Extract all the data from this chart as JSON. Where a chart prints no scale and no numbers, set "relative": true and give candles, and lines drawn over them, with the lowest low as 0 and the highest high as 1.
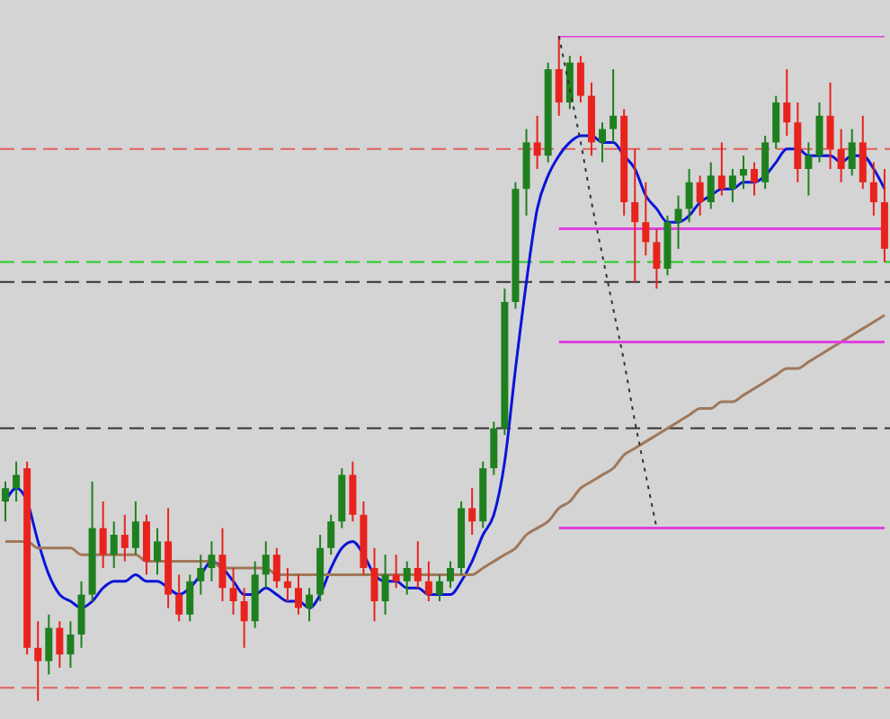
{
  "chart_data": {
    "type": "candlestick",
    "relative": true,
    "grid": false,
    "tick_labels": false,
    "marker": "none",
    "categories": [
      null,
      null,
      null,
      null,
      null,
      null,
      null,
      null,
      null,
      null,
      null,
      null,
      null,
      null,
      null,
      null,
      null,
      null,
      null,
      null,
      null,
      null,
      null,
      null,
      null,
      null,
      null,
      null,
      null,
      null,
      null,
      null,
      null,
      null,
      null,
      null,
      null,
      null,
      null,
      null,
      null,
      null,
      null,
      null,
      null,
      null,
      null,
      null,
      null,
      null,
      null,
      null,
      null,
      null,
      null,
      null,
      null,
      null,
      null,
      null,
      null,
      null,
      null,
      null,
      null,
      null,
      null,
      null,
      null,
      null,
      null,
      null,
      null,
      null,
      null,
      null,
      null,
      null,
      null,
      null,
      null,
      null
    ],
    "colors": [
      "#1f801f",
      "#1f801f",
      "#e8231d",
      "#e8231d",
      "#1f801f",
      "#e8231d",
      "#1f801f",
      "#1f801f",
      "#1f801f",
      "#e8231d",
      "#1f801f",
      "#e8231d",
      "#1f801f",
      "#e8231d",
      "#1f801f",
      "#e8231d",
      "#e8231d",
      "#1f801f",
      "#1f801f",
      "#1f801f",
      "#e8231d",
      "#e8231d",
      "#e8231d",
      "#1f801f",
      "#1f801f",
      "#e8231d",
      "#e8231d",
      "#e8231d",
      "#1f801f",
      "#1f801f",
      "#1f801f",
      "#1f801f",
      "#e8231d",
      "#e8231d",
      "#e8231d",
      "#1f801f",
      "#e8231d",
      "#1f801f",
      "#e8231d",
      "#e8231d",
      "#1f801f",
      "#1f801f",
      "#1f801f",
      "#e8231d",
      "#1f801f",
      "#1f801f",
      "#1f801f",
      "#1f801f",
      "#1f801f",
      "#e8231d",
      "#1f801f",
      "#e8231d",
      "#1f801f",
      "#e8231d",
      "#e8231d",
      "#1f801f",
      "#1f801f",
      "#e8231d",
      "#e8231d",
      "#e8231d",
      "#e8231d",
      "#1f801f",
      "#1f801f",
      "#1f801f",
      "#e8231d",
      "#1f801f",
      "#e8231d",
      "#1f801f",
      "#1f801f",
      "#e8231d",
      "#1f801f",
      "#1f801f",
      "#e8231d",
      "#e8231d",
      "#1f801f",
      "#1f801f",
      "#e8231d",
      "#e8231d",
      "#1f801f",
      "#e8231d",
      "#e8231d",
      "#e8231d"
    ],
    "ohlc": [
      [
        0.3,
        0.33,
        0.27,
        0.32
      ],
      [
        0.32,
        0.36,
        0.3,
        0.34
      ],
      [
        0.35,
        0.36,
        0.07,
        0.08
      ],
      [
        0.08,
        0.12,
        0.0,
        0.06
      ],
      [
        0.06,
        0.13,
        0.04,
        0.11
      ],
      [
        0.11,
        0.12,
        0.05,
        0.07
      ],
      [
        0.07,
        0.12,
        0.05,
        0.1
      ],
      [
        0.1,
        0.18,
        0.08,
        0.16
      ],
      [
        0.16,
        0.33,
        0.15,
        0.26
      ],
      [
        0.26,
        0.3,
        0.2,
        0.22
      ],
      [
        0.22,
        0.27,
        0.2,
        0.25
      ],
      [
        0.25,
        0.28,
        0.21,
        0.23
      ],
      [
        0.23,
        0.3,
        0.22,
        0.27
      ],
      [
        0.27,
        0.28,
        0.19,
        0.21
      ],
      [
        0.21,
        0.26,
        0.19,
        0.24
      ],
      [
        0.24,
        0.29,
        0.14,
        0.16
      ],
      [
        0.16,
        0.19,
        0.12,
        0.13
      ],
      [
        0.13,
        0.19,
        0.12,
        0.18
      ],
      [
        0.18,
        0.22,
        0.16,
        0.2
      ],
      [
        0.2,
        0.24,
        0.18,
        0.22
      ],
      [
        0.22,
        0.26,
        0.15,
        0.17
      ],
      [
        0.17,
        0.2,
        0.13,
        0.15
      ],
      [
        0.15,
        0.17,
        0.08,
        0.12
      ],
      [
        0.12,
        0.21,
        0.11,
        0.19
      ],
      [
        0.19,
        0.24,
        0.17,
        0.22
      ],
      [
        0.22,
        0.23,
        0.17,
        0.18
      ],
      [
        0.18,
        0.2,
        0.15,
        0.17
      ],
      [
        0.17,
        0.19,
        0.13,
        0.14
      ],
      [
        0.14,
        0.17,
        0.12,
        0.16
      ],
      [
        0.16,
        0.25,
        0.15,
        0.23
      ],
      [
        0.23,
        0.28,
        0.22,
        0.27
      ],
      [
        0.27,
        0.35,
        0.26,
        0.34
      ],
      [
        0.34,
        0.36,
        0.27,
        0.28
      ],
      [
        0.28,
        0.3,
        0.19,
        0.2
      ],
      [
        0.2,
        0.23,
        0.12,
        0.15
      ],
      [
        0.15,
        0.22,
        0.13,
        0.19
      ],
      [
        0.19,
        0.22,
        0.17,
        0.18
      ],
      [
        0.18,
        0.21,
        0.16,
        0.2
      ],
      [
        0.2,
        0.24,
        0.17,
        0.18
      ],
      [
        0.18,
        0.21,
        0.15,
        0.16
      ],
      [
        0.16,
        0.19,
        0.15,
        0.18
      ],
      [
        0.18,
        0.21,
        0.17,
        0.2
      ],
      [
        0.2,
        0.3,
        0.19,
        0.29
      ],
      [
        0.29,
        0.32,
        0.25,
        0.27
      ],
      [
        0.27,
        0.36,
        0.26,
        0.35
      ],
      [
        0.35,
        0.42,
        0.34,
        0.41
      ],
      [
        0.41,
        0.62,
        0.4,
        0.6
      ],
      [
        0.6,
        0.78,
        0.59,
        0.77
      ],
      [
        0.77,
        0.86,
        0.73,
        0.84
      ],
      [
        0.84,
        0.88,
        0.8,
        0.82
      ],
      [
        0.82,
        0.96,
        0.81,
        0.95
      ],
      [
        0.95,
        1.0,
        0.88,
        0.9
      ],
      [
        0.9,
        0.97,
        0.89,
        0.96
      ],
      [
        0.96,
        0.97,
        0.9,
        0.91
      ],
      [
        0.91,
        0.93,
        0.82,
        0.84
      ],
      [
        0.84,
        0.87,
        0.81,
        0.86
      ],
      [
        0.86,
        0.95,
        0.84,
        0.88
      ],
      [
        0.88,
        0.89,
        0.73,
        0.75
      ],
      [
        0.75,
        0.83,
        0.63,
        0.72
      ],
      [
        0.72,
        0.78,
        0.67,
        0.69
      ],
      [
        0.69,
        0.71,
        0.62,
        0.65
      ],
      [
        0.65,
        0.73,
        0.64,
        0.72
      ],
      [
        0.72,
        0.76,
        0.68,
        0.74
      ],
      [
        0.74,
        0.8,
        0.72,
        0.78
      ],
      [
        0.78,
        0.79,
        0.73,
        0.75
      ],
      [
        0.75,
        0.81,
        0.74,
        0.79
      ],
      [
        0.79,
        0.84,
        0.76,
        0.77
      ],
      [
        0.77,
        0.8,
        0.75,
        0.79
      ],
      [
        0.79,
        0.82,
        0.77,
        0.8
      ],
      [
        0.8,
        0.81,
        0.76,
        0.78
      ],
      [
        0.78,
        0.85,
        0.77,
        0.84
      ],
      [
        0.84,
        0.91,
        0.83,
        0.9
      ],
      [
        0.9,
        0.95,
        0.85,
        0.87
      ],
      [
        0.87,
        0.9,
        0.78,
        0.8
      ],
      [
        0.8,
        0.84,
        0.76,
        0.82
      ],
      [
        0.82,
        0.9,
        0.81,
        0.88
      ],
      [
        0.88,
        0.93,
        0.8,
        0.83
      ],
      [
        0.83,
        0.86,
        0.78,
        0.8
      ],
      [
        0.8,
        0.86,
        0.79,
        0.84
      ],
      [
        0.84,
        0.88,
        0.77,
        0.78
      ],
      [
        0.78,
        0.81,
        0.73,
        0.75
      ],
      [
        0.75,
        0.8,
        0.66,
        0.68
      ]
    ],
    "series": [
      {
        "type": "line",
        "color": "#0a14d8",
        "line_style": "solid",
        "values": [
          0.3,
          0.32,
          0.3,
          0.24,
          0.19,
          0.16,
          0.15,
          0.14,
          0.15,
          0.17,
          0.18,
          0.18,
          0.19,
          0.18,
          0.18,
          0.17,
          0.16,
          0.17,
          0.19,
          0.21,
          0.2,
          0.18,
          0.16,
          0.16,
          0.17,
          0.16,
          0.15,
          0.15,
          0.14,
          0.16,
          0.2,
          0.23,
          0.24,
          0.22,
          0.19,
          0.18,
          0.18,
          0.17,
          0.17,
          0.16,
          0.16,
          0.16,
          0.18,
          0.21,
          0.25,
          0.28,
          0.36,
          0.5,
          0.63,
          0.74,
          0.79,
          0.82,
          0.84,
          0.85,
          0.85,
          0.84,
          0.84,
          0.82,
          0.8,
          0.76,
          0.74,
          0.72,
          0.72,
          0.73,
          0.75,
          0.76,
          0.77,
          0.77,
          0.78,
          0.78,
          0.79,
          0.81,
          0.83,
          0.83,
          0.82,
          0.82,
          0.82,
          0.81,
          0.82,
          0.82,
          0.8,
          0.77
        ]
      },
      {
        "type": "line",
        "color": "#a0785a",
        "line_style": "solid",
        "values": [
          0.24,
          0.24,
          0.24,
          0.23,
          0.23,
          0.23,
          0.23,
          0.22,
          0.22,
          0.22,
          0.22,
          0.22,
          0.22,
          0.21,
          0.21,
          0.21,
          0.21,
          0.21,
          0.21,
          0.21,
          0.2,
          0.2,
          0.2,
          0.2,
          0.2,
          0.19,
          0.19,
          0.19,
          0.19,
          0.19,
          0.19,
          0.19,
          0.19,
          0.19,
          0.19,
          0.19,
          0.19,
          0.19,
          0.19,
          0.19,
          0.19,
          0.19,
          0.19,
          0.19,
          0.2,
          0.21,
          0.22,
          0.23,
          0.25,
          0.26,
          0.27,
          0.29,
          0.3,
          0.32,
          0.33,
          0.34,
          0.35,
          0.37,
          0.38,
          0.39,
          0.4,
          0.41,
          0.42,
          0.43,
          0.44,
          0.44,
          0.45,
          0.45,
          0.46,
          0.47,
          0.48,
          0.49,
          0.5,
          0.5,
          0.51,
          0.52,
          0.53,
          0.54,
          0.55,
          0.56,
          0.57,
          0.58
        ]
      },
      {
        "type": "line",
        "color": "#e040e0",
        "line_style": "solid",
        "values": [
          null,
          null,
          null,
          null,
          null,
          null,
          null,
          null,
          null,
          null,
          null,
          null,
          null,
          null,
          null,
          null,
          null,
          null,
          null,
          null,
          null,
          null,
          null,
          null,
          null,
          null,
          null,
          null,
          null,
          null,
          null,
          null,
          null,
          null,
          null,
          null,
          null,
          null,
          null,
          null,
          null,
          null,
          null,
          null,
          null,
          null,
          null,
          null,
          null,
          null,
          null,
          1.0,
          1.0,
          1.0,
          1.0,
          1.0,
          1.0,
          1.0,
          1.0,
          1.0,
          1.0,
          1.0,
          1.0,
          1.0,
          1.0,
          1.0,
          1.0,
          1.0,
          1.0,
          1.0,
          1.0,
          1.0,
          1.0,
          1.0,
          1.0,
          1.0,
          1.0,
          1.0,
          1.0,
          1.0,
          1.0,
          1.0
        ]
      },
      {
        "type": "line",
        "color": "#e040e0",
        "line_style": "solid",
        "values": [
          null,
          null,
          null,
          null,
          null,
          null,
          null,
          null,
          null,
          null,
          null,
          null,
          null,
          null,
          null,
          null,
          null,
          null,
          null,
          null,
          null,
          null,
          null,
          null,
          null,
          null,
          null,
          null,
          null,
          null,
          null,
          null,
          null,
          null,
          null,
          null,
          null,
          null,
          null,
          null,
          null,
          null,
          null,
          null,
          null,
          null,
          null,
          null,
          null,
          null,
          null,
          0.71,
          0.71,
          0.71,
          0.71,
          0.71,
          0.71,
          0.71,
          0.71,
          0.71,
          0.71,
          0.71,
          0.71,
          0.71,
          0.71,
          0.71,
          0.71,
          0.71,
          0.71,
          0.71,
          0.71,
          0.71,
          0.71,
          0.71,
          0.71,
          0.71,
          0.71,
          0.71,
          0.71,
          0.71,
          0.71,
          0.71
        ]
      },
      {
        "type": "line",
        "color": "#e040e0",
        "line_style": "solid",
        "values": [
          null,
          null,
          null,
          null,
          null,
          null,
          null,
          null,
          null,
          null,
          null,
          null,
          null,
          null,
          null,
          null,
          null,
          null,
          null,
          null,
          null,
          null,
          null,
          null,
          null,
          null,
          null,
          null,
          null,
          null,
          null,
          null,
          null,
          null,
          null,
          null,
          null,
          null,
          null,
          null,
          null,
          null,
          null,
          null,
          null,
          null,
          null,
          null,
          null,
          null,
          null,
          0.54,
          0.54,
          0.54,
          0.54,
          0.54,
          0.54,
          0.54,
          0.54,
          0.54,
          0.54,
          0.54,
          0.54,
          0.54,
          0.54,
          0.54,
          0.54,
          0.54,
          0.54,
          0.54,
          0.54,
          0.54,
          0.54,
          0.54,
          0.54,
          0.54,
          0.54,
          0.54,
          0.54,
          0.54,
          0.54,
          0.54
        ]
      },
      {
        "type": "line",
        "color": "#e040e0",
        "line_style": "solid",
        "values": [
          null,
          null,
          null,
          null,
          null,
          null,
          null,
          null,
          null,
          null,
          null,
          null,
          null,
          null,
          null,
          null,
          null,
          null,
          null,
          null,
          null,
          null,
          null,
          null,
          null,
          null,
          null,
          null,
          null,
          null,
          null,
          null,
          null,
          null,
          null,
          null,
          null,
          null,
          null,
          null,
          null,
          null,
          null,
          null,
          null,
          null,
          null,
          null,
          null,
          null,
          null,
          0.26,
          0.26,
          0.26,
          0.26,
          0.26,
          0.26,
          0.26,
          0.26,
          0.26,
          0.26,
          0.26,
          0.26,
          0.26,
          0.26,
          0.26,
          0.26,
          0.26,
          0.26,
          0.26,
          0.26,
          0.26,
          0.26,
          0.26,
          0.26,
          0.26,
          0.26,
          0.26,
          0.26,
          0.26,
          0.26,
          0.26
        ]
      },
      {
        "type": "line",
        "color": "#333333",
        "line_style": "dotted",
        "values": [
          null,
          null,
          null,
          null,
          null,
          null,
          null,
          null,
          null,
          null,
          null,
          null,
          null,
          null,
          null,
          null,
          null,
          null,
          null,
          null,
          null,
          null,
          null,
          null,
          null,
          null,
          null,
          null,
          null,
          null,
          null,
          null,
          null,
          null,
          null,
          null,
          null,
          null,
          null,
          null,
          null,
          null,
          null,
          null,
          null,
          null,
          null,
          null,
          null,
          null,
          null,
          1.0,
          0.92,
          0.84,
          0.75,
          0.67,
          0.59,
          0.51,
          0.42,
          0.34,
          0.26,
          null,
          null,
          null,
          null,
          null,
          null,
          null,
          null,
          null,
          null,
          null,
          null,
          null,
          null,
          null,
          null,
          null,
          null,
          null,
          null,
          null
        ]
      }
    ],
    "ref_lines": [
      {
        "axis": "y",
        "value": 0.83,
        "color": "#e06060",
        "line_style": "dashed"
      },
      {
        "axis": "y",
        "value": 0.02,
        "color": "#e06060",
        "line_style": "dashed"
      },
      {
        "axis": "y",
        "value": 0.66,
        "color": "#22cc22",
        "line_style": "dashed"
      },
      {
        "axis": "y",
        "value": 0.63,
        "color": "#333333",
        "line_style": "dashed"
      },
      {
        "axis": "y",
        "value": 0.41,
        "color": "#333333",
        "line_style": "dashed"
      }
    ]
  }
}
